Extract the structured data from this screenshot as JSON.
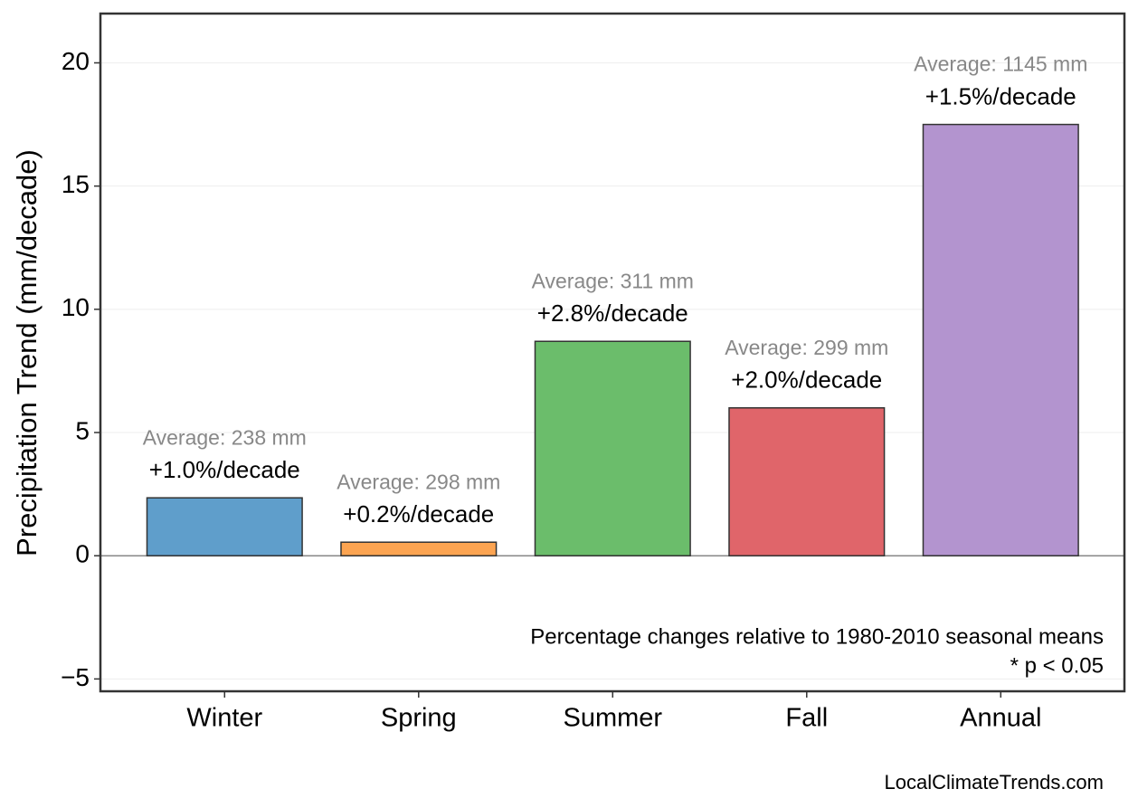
{
  "chart_data": {
    "type": "bar",
    "y_label": "Precipitation Trend (mm/decade)",
    "categories": [
      "Winter",
      "Spring",
      "Summer",
      "Fall",
      "Annual"
    ],
    "values": [
      2.35,
      0.55,
      8.7,
      6.0,
      17.5
    ],
    "colors": [
      "#5f9ecb",
      "#fca451",
      "#6bbd6b",
      "#e0656a",
      "#b394cf"
    ],
    "value_labels": [
      "+1.0%/decade",
      "+0.2%/decade",
      "+2.8%/decade",
      "+2.0%/decade",
      "+1.5%/decade"
    ],
    "average_labels": [
      "Average: 238 mm",
      "Average: 298 mm",
      "Average: 311 mm",
      "Average: 299 mm",
      "Average: 1145 mm"
    ],
    "ylim": [
      -5.5,
      22
    ],
    "yticks": [
      {
        "value": -5,
        "label": "−5"
      },
      0,
      5,
      10,
      15,
      20
    ],
    "grid": true,
    "notes": [
      "Percentage changes relative to 1980-2010 seasonal means",
      "* p < 0.05"
    ],
    "source": "LocalClimateTrends.com"
  }
}
